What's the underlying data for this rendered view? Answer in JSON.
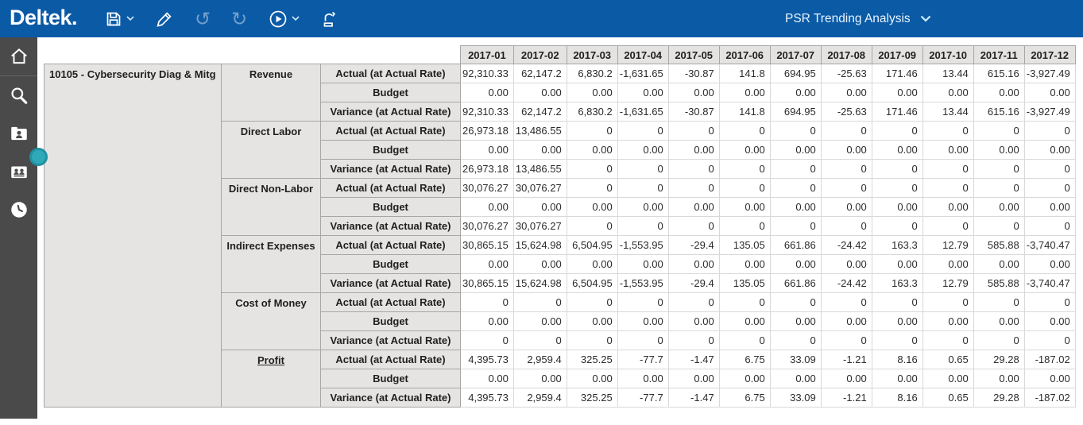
{
  "topbar": {
    "logo": "Deltek.",
    "title": "PSR Trending Analysis",
    "background_color": "#0b5aa6",
    "buttons": [
      "save",
      "save-menu",
      "edit",
      "undo",
      "redo",
      "run",
      "run-menu",
      "export"
    ]
  },
  "sidebar": {
    "background_color": "#4a4a4a",
    "handle_color": "#2fa9b7",
    "icons": [
      "home",
      "search",
      "user-folder",
      "users-folder",
      "clock"
    ]
  },
  "table": {
    "project_label": "10105 - Cybersecurity Diag & Mitg",
    "months": [
      "2017-01",
      "2017-02",
      "2017-03",
      "2017-04",
      "2017-05",
      "2017-06",
      "2017-07",
      "2017-08",
      "2017-09",
      "2017-10",
      "2017-11",
      "2017-12"
    ],
    "measures": [
      "Actual (at Actual Rate)",
      "Budget",
      "Variance (at Actual Rate)"
    ],
    "groups": [
      {
        "category": "Revenue",
        "link": false,
        "rows": [
          [
            "92,310.33",
            "62,147.2",
            "6,830.2",
            "-1,631.65",
            "-30.87",
            "141.8",
            "694.95",
            "-25.63",
            "171.46",
            "13.44",
            "615.16",
            "-3,927.49"
          ],
          [
            "0.00",
            "0.00",
            "0.00",
            "0.00",
            "0.00",
            "0.00",
            "0.00",
            "0.00",
            "0.00",
            "0.00",
            "0.00",
            "0.00"
          ],
          [
            "92,310.33",
            "62,147.2",
            "6,830.2",
            "-1,631.65",
            "-30.87",
            "141.8",
            "694.95",
            "-25.63",
            "171.46",
            "13.44",
            "615.16",
            "-3,927.49"
          ]
        ]
      },
      {
        "category": "Direct Labor",
        "link": false,
        "rows": [
          [
            "26,973.18",
            "13,486.55",
            "0",
            "0",
            "0",
            "0",
            "0",
            "0",
            "0",
            "0",
            "0",
            "0"
          ],
          [
            "0.00",
            "0.00",
            "0.00",
            "0.00",
            "0.00",
            "0.00",
            "0.00",
            "0.00",
            "0.00",
            "0.00",
            "0.00",
            "0.00"
          ],
          [
            "26,973.18",
            "13,486.55",
            "0",
            "0",
            "0",
            "0",
            "0",
            "0",
            "0",
            "0",
            "0",
            "0"
          ]
        ]
      },
      {
        "category": "Direct Non-Labor",
        "link": false,
        "rows": [
          [
            "30,076.27",
            "30,076.27",
            "0",
            "0",
            "0",
            "0",
            "0",
            "0",
            "0",
            "0",
            "0",
            "0"
          ],
          [
            "0.00",
            "0.00",
            "0.00",
            "0.00",
            "0.00",
            "0.00",
            "0.00",
            "0.00",
            "0.00",
            "0.00",
            "0.00",
            "0.00"
          ],
          [
            "30,076.27",
            "30,076.27",
            "0",
            "0",
            "0",
            "0",
            "0",
            "0",
            "0",
            "0",
            "0",
            "0"
          ]
        ]
      },
      {
        "category": "Indirect Expenses",
        "link": false,
        "rows": [
          [
            "30,865.15",
            "15,624.98",
            "6,504.95",
            "-1,553.95",
            "-29.4",
            "135.05",
            "661.86",
            "-24.42",
            "163.3",
            "12.79",
            "585.88",
            "-3,740.47"
          ],
          [
            "0.00",
            "0.00",
            "0.00",
            "0.00",
            "0.00",
            "0.00",
            "0.00",
            "0.00",
            "0.00",
            "0.00",
            "0.00",
            "0.00"
          ],
          [
            "30,865.15",
            "15,624.98",
            "6,504.95",
            "-1,553.95",
            "-29.4",
            "135.05",
            "661.86",
            "-24.42",
            "163.3",
            "12.79",
            "585.88",
            "-3,740.47"
          ]
        ]
      },
      {
        "category": "Cost of Money",
        "link": false,
        "rows": [
          [
            "0",
            "0",
            "0",
            "0",
            "0",
            "0",
            "0",
            "0",
            "0",
            "0",
            "0",
            "0"
          ],
          [
            "0.00",
            "0.00",
            "0.00",
            "0.00",
            "0.00",
            "0.00",
            "0.00",
            "0.00",
            "0.00",
            "0.00",
            "0.00",
            "0.00"
          ],
          [
            "0",
            "0",
            "0",
            "0",
            "0",
            "0",
            "0",
            "0",
            "0",
            "0",
            "0",
            "0"
          ]
        ]
      },
      {
        "category": "Profit",
        "link": true,
        "rows": [
          [
            "4,395.73",
            "2,959.4",
            "325.25",
            "-77.7",
            "-1.47",
            "6.75",
            "33.09",
            "-1.21",
            "8.16",
            "0.65",
            "29.28",
            "-187.02"
          ],
          [
            "0.00",
            "0.00",
            "0.00",
            "0.00",
            "0.00",
            "0.00",
            "0.00",
            "0.00",
            "0.00",
            "0.00",
            "0.00",
            "0.00"
          ],
          [
            "4,395.73",
            "2,959.4",
            "325.25",
            "-77.7",
            "-1.47",
            "6.75",
            "33.09",
            "-1.21",
            "8.16",
            "0.65",
            "29.28",
            "-187.02"
          ]
        ]
      }
    ]
  }
}
